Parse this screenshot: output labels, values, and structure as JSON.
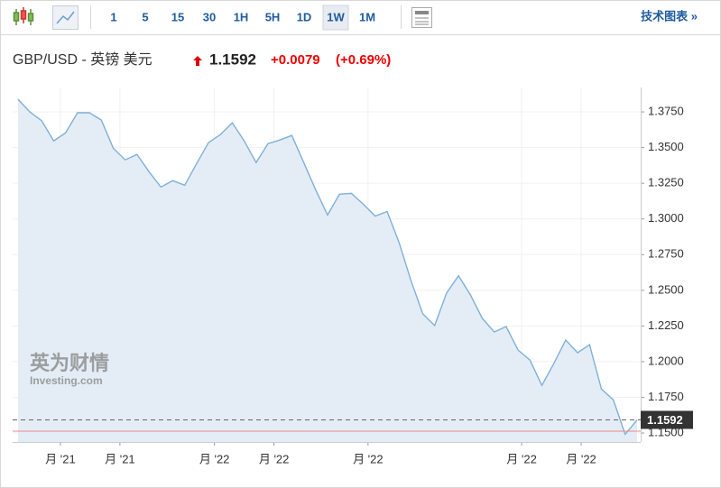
{
  "toolbar": {
    "intervals": [
      "1",
      "5",
      "15",
      "30",
      "1H",
      "5H",
      "1D",
      "1W",
      "1M"
    ],
    "active": "1W",
    "technical": "技术图表 »"
  },
  "header": {
    "pair": "GBP/USD - 英镑 美元",
    "price": "1.1592",
    "change": "+0.0079",
    "change_pct": "(+0.69%)"
  },
  "watermark": {
    "brand": "英为财情",
    "site": "Investing.com"
  },
  "chart_data": {
    "type": "area",
    "color": "#7fb0d9",
    "fill": "#e4edf6",
    "x": [
      0,
      1,
      2,
      3,
      4,
      5,
      6,
      7,
      8,
      9,
      10,
      11,
      12,
      13,
      14,
      15,
      16,
      17,
      18,
      19,
      20,
      21,
      22,
      23,
      24,
      25,
      26,
      27,
      28,
      29,
      30,
      31,
      32,
      33,
      34,
      35,
      36,
      37,
      38,
      39,
      40,
      41,
      42,
      43,
      44,
      45,
      46,
      47,
      48,
      49,
      50,
      51,
      52
    ],
    "values": [
      1.3839,
      1.375,
      1.3687,
      1.3547,
      1.3604,
      1.3744,
      1.3744,
      1.3693,
      1.3496,
      1.3414,
      1.3452,
      1.3331,
      1.3223,
      1.3268,
      1.3236,
      1.3388,
      1.3534,
      1.3591,
      1.3674,
      1.3547,
      1.3395,
      1.3528,
      1.3553,
      1.3585,
      1.3395,
      1.3204,
      1.3027,
      1.3173,
      1.3179,
      1.3103,
      1.302,
      1.3052,
      1.2836,
      1.257,
      1.2335,
      1.2253,
      1.2481,
      1.2602,
      1.2468,
      1.2303,
      1.2208,
      1.2246,
      1.2081,
      1.2011,
      1.1834,
      1.1986,
      1.2151,
      1.2062,
      1.2119,
      1.1808,
      1.1732,
      1.1491,
      1.1592
    ],
    "xlim": [
      -0.45,
      52.3
    ],
    "xticks": [
      {
        "value": 3.56,
        "label": "月 '21"
      },
      {
        "value": 8.56,
        "label": "月 '21"
      },
      {
        "value": 16.5,
        "label": "月 '22"
      },
      {
        "value": 21.5,
        "label": "月 '22"
      },
      {
        "value": 29.4,
        "label": "月 '22"
      },
      {
        "value": 42.3,
        "label": "月 '22"
      },
      {
        "value": 47.3,
        "label": "月 '22"
      }
    ],
    "ylim": [
      1.1437,
      1.3921
    ],
    "yticks": [
      {
        "value": 1.15,
        "label": "1.1500"
      },
      {
        "value": 1.175,
        "label": "1.1750"
      },
      {
        "value": 1.2,
        "label": "1.2000"
      },
      {
        "value": 1.225,
        "label": "1.2250"
      },
      {
        "value": 1.25,
        "label": "1.2500"
      },
      {
        "value": 1.275,
        "label": "1.2750"
      },
      {
        "value": 1.3,
        "label": "1.3000"
      },
      {
        "value": 1.325,
        "label": "1.3250"
      },
      {
        "value": 1.35,
        "label": "1.3500"
      },
      {
        "value": 1.375,
        "label": "1.3750"
      }
    ],
    "last_value": 1.1592,
    "reference_line": 1.1513,
    "grid": true
  }
}
